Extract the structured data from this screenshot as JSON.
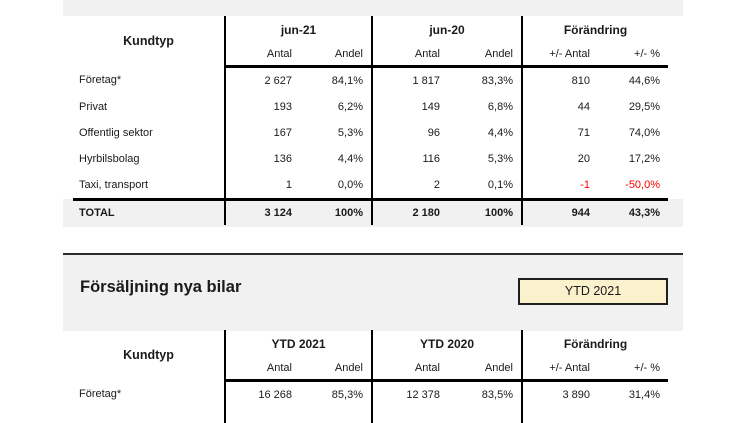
{
  "page": {
    "background": "#ffffff",
    "band_color": "#f1f1f1",
    "text_color": "#1a1a1a",
    "negative_color": "#ff0000",
    "badge_fill": "#fcf1cd"
  },
  "monthly_table": {
    "corner_label": "Kundtyp",
    "groups": [
      {
        "label": "jun-21",
        "sub": [
          "Antal",
          "Andel"
        ]
      },
      {
        "label": "jun-20",
        "sub": [
          "Antal",
          "Andel"
        ]
      },
      {
        "label": "Förändring",
        "sub": [
          "+/- Antal",
          "+/- %"
        ]
      }
    ],
    "rows": [
      {
        "label": "Företag*",
        "cells": [
          "2 627",
          "84,1%",
          "1 817",
          "83,3%",
          "810",
          "44,6%"
        ],
        "negative_cells": []
      },
      {
        "label": "Privat",
        "cells": [
          "193",
          "6,2%",
          "149",
          "6,8%",
          "44",
          "29,5%"
        ],
        "negative_cells": []
      },
      {
        "label": "Offentlig sektor",
        "cells": [
          "167",
          "5,3%",
          "96",
          "4,4%",
          "71",
          "74,0%"
        ],
        "negative_cells": []
      },
      {
        "label": "Hyrbilsbolag",
        "cells": [
          "136",
          "4,4%",
          "116",
          "5,3%",
          "20",
          "17,2%"
        ],
        "negative_cells": []
      },
      {
        "label": "Taxi, transport",
        "cells": [
          "1",
          "0,0%",
          "2",
          "0,1%",
          "-1",
          "-50,0%"
        ],
        "negative_cells": [
          4,
          5
        ]
      }
    ],
    "total": {
      "label": "TOTAL",
      "cells": [
        "3 124",
        "100%",
        "2 180",
        "100%",
        "944",
        "43,3%"
      ]
    }
  },
  "section2": {
    "title": "Försäljning nya bilar",
    "badge": "YTD 2021"
  },
  "ytd_table": {
    "corner_label": "Kundtyp",
    "groups": [
      {
        "label": "YTD 2021",
        "sub": [
          "Antal",
          "Andel"
        ]
      },
      {
        "label": "YTD 2020",
        "sub": [
          "Antal",
          "Andel"
        ]
      },
      {
        "label": "Förändring",
        "sub": [
          "+/- Antal",
          "+/- %"
        ]
      }
    ],
    "rows": [
      {
        "label": "Företag*",
        "cells": [
          "16 268",
          "85,3%",
          "12 378",
          "83,5%",
          "3 890",
          "31,4%"
        ],
        "negative_cells": []
      }
    ],
    "total": null
  }
}
